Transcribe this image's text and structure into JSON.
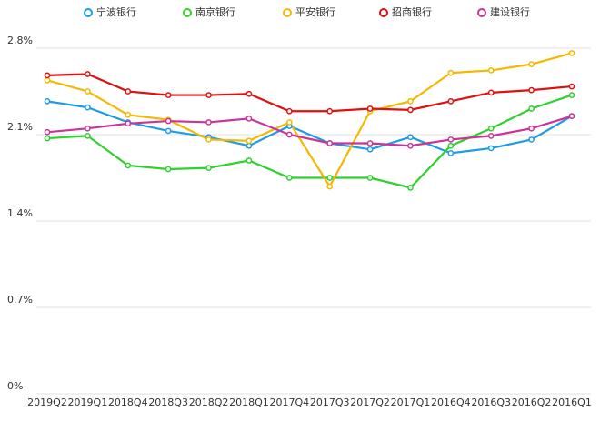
{
  "chart_data": {
    "type": "line",
    "categories": [
      "2019Q2",
      "2019Q1",
      "2018Q4",
      "2018Q3",
      "2018Q2",
      "2018Q1",
      "2017Q4",
      "2017Q3",
      "2017Q2",
      "2017Q1",
      "2016Q4",
      "2016Q3",
      "2016Q2",
      "2016Q1"
    ],
    "series": [
      {
        "name": "宁波银行",
        "color": "#1e9be8",
        "values": [
          2.37,
          2.32,
          2.2,
          2.13,
          2.08,
          2.01,
          2.17,
          2.03,
          1.98,
          2.08,
          1.95,
          1.99,
          2.06,
          2.25
        ]
      },
      {
        "name": "南京银行",
        "color": "#2ed12e",
        "values": [
          2.07,
          2.09,
          1.85,
          1.82,
          1.83,
          1.89,
          1.75,
          1.75,
          1.75,
          1.67,
          2.01,
          2.15,
          2.31,
          2.42
        ]
      },
      {
        "name": "平安银行",
        "color": "#f5b800",
        "values": [
          2.54,
          2.45,
          2.26,
          2.22,
          2.06,
          2.05,
          2.2,
          1.68,
          2.29,
          2.37,
          2.6,
          2.62,
          2.67,
          2.76
        ]
      },
      {
        "name": "招商银行",
        "color": "#e01010",
        "values": [
          2.58,
          2.59,
          2.45,
          2.42,
          2.42,
          2.43,
          2.29,
          2.29,
          2.31,
          2.3,
          2.37,
          2.44,
          2.46,
          2.49
        ]
      },
      {
        "name": "建设银行",
        "color": "#cc3399",
        "values": [
          2.12,
          2.15,
          2.19,
          2.21,
          2.2,
          2.23,
          2.1,
          2.03,
          2.03,
          2.01,
          2.06,
          2.09,
          2.15,
          2.25
        ]
      }
    ],
    "ylim": [
      0,
      2.8
    ],
    "yticks": [
      {
        "value": 0,
        "label": "0%"
      },
      {
        "value": 0.7,
        "label": "0.7%"
      },
      {
        "value": 1.4,
        "label": "1.4%"
      },
      {
        "value": 2.1,
        "label": "2.1%"
      },
      {
        "value": 2.8,
        "label": "2.8%"
      }
    ],
    "grid": true
  }
}
